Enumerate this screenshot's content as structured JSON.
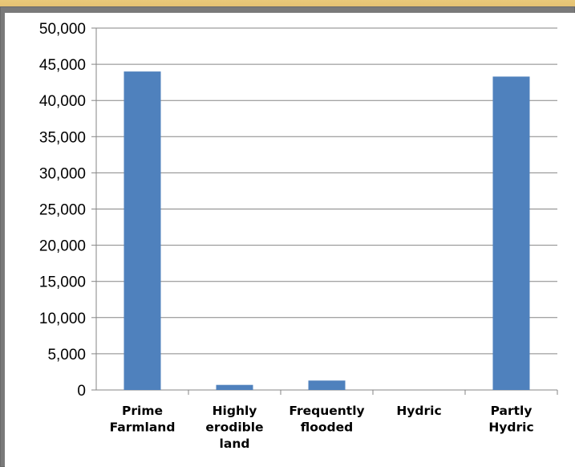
{
  "chart_data": {
    "type": "bar",
    "title": "",
    "xlabel": "",
    "ylabel": "",
    "categories": [
      [
        "Prime",
        "Farmland"
      ],
      [
        "Highly",
        "erodible",
        "land"
      ],
      [
        "Frequently",
        "flooded"
      ],
      [
        "Hydric"
      ],
      [
        "Partly",
        "Hydric"
      ]
    ],
    "values": [
      44000,
      700,
      1300,
      0,
      43300
    ],
    "ylim": [
      0,
      50000
    ],
    "yticks": [
      0,
      5000,
      10000,
      15000,
      20000,
      25000,
      30000,
      35000,
      40000,
      45000,
      50000
    ],
    "ytick_labels": [
      "0",
      "5,000",
      "10,000",
      "15,000",
      "20,000",
      "25,000",
      "30,000",
      "35,000",
      "40,000",
      "45,000",
      "50,000"
    ],
    "grid": true,
    "legend": "none",
    "bar_color": "#4f81bd",
    "grid_color": "#868686"
  }
}
